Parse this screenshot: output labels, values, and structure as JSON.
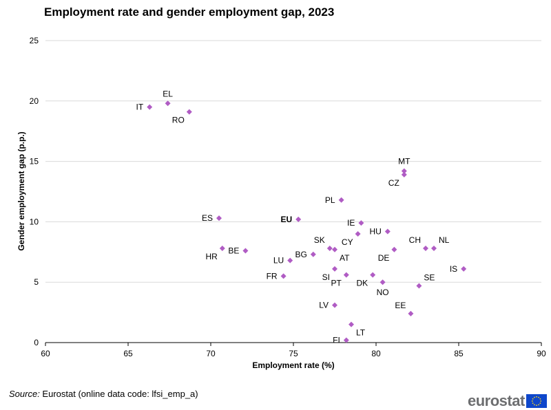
{
  "title": "Employment rate and gender employment gap, 2023",
  "source": {
    "label": "Source:",
    "text": " Eurostat (online data code: lfsi_emp_a)"
  },
  "logo": {
    "text": "eurostat",
    "flag_icon": "eu-flag-icon"
  },
  "colors": {
    "marker": "#b05cc4",
    "grid": "#d9d9d9",
    "axis": "#000000",
    "flag_blue": "#0e47cb",
    "flag_star": "#ffd617"
  },
  "chart_data": {
    "type": "scatter",
    "title": "Employment rate and gender employment gap, 2023",
    "xlabel": "Employment rate (%)",
    "ylabel": "Gender employment gap (p.p.)",
    "xlim": [
      60,
      90
    ],
    "ylim": [
      0,
      25
    ],
    "xticks": [
      60,
      65,
      70,
      75,
      80,
      85,
      90
    ],
    "yticks": [
      0,
      5,
      10,
      15,
      20,
      25
    ],
    "grid": "horizontal",
    "points": [
      {
        "label": "IT",
        "x": 66.3,
        "y": 19.5,
        "pos": "left"
      },
      {
        "label": "EL",
        "x": 67.4,
        "y": 19.8,
        "pos": "top"
      },
      {
        "label": "RO",
        "x": 68.7,
        "y": 19.1,
        "pos": "bottom-left"
      },
      {
        "label": "MT",
        "x": 81.7,
        "y": 14.2,
        "pos": "top"
      },
      {
        "label": "CZ",
        "x": 81.7,
        "y": 13.9,
        "pos": "bottom-left"
      },
      {
        "label": "PL",
        "x": 77.9,
        "y": 11.8,
        "pos": "left"
      },
      {
        "label": "ES",
        "x": 70.5,
        "y": 10.3,
        "pos": "left"
      },
      {
        "label": "EU",
        "x": 75.3,
        "y": 10.2,
        "pos": "left",
        "bold": true
      },
      {
        "label": "IE",
        "x": 79.1,
        "y": 9.9,
        "pos": "left"
      },
      {
        "label": "CY",
        "x": 78.9,
        "y": 9.0,
        "pos": "bottom-left"
      },
      {
        "label": "HU",
        "x": 80.7,
        "y": 9.2,
        "pos": "left"
      },
      {
        "label": "HR",
        "x": 70.7,
        "y": 7.8,
        "pos": "bottom-left"
      },
      {
        "label": "BE",
        "x": 72.1,
        "y": 7.6,
        "pos": "left"
      },
      {
        "label": "SK",
        "x": 77.2,
        "y": 7.8,
        "pos": "top-left"
      },
      {
        "label": "AT",
        "x": 77.5,
        "y": 7.7,
        "pos": "bottom-right"
      },
      {
        "label": "BG",
        "x": 76.2,
        "y": 7.3,
        "pos": "left"
      },
      {
        "label": "LU",
        "x": 74.8,
        "y": 6.8,
        "pos": "left"
      },
      {
        "label": "DE",
        "x": 81.1,
        "y": 7.7,
        "pos": "bottom-left"
      },
      {
        "label": "CH",
        "x": 83.0,
        "y": 7.8,
        "pos": "top-left"
      },
      {
        "label": "NL",
        "x": 83.5,
        "y": 7.8,
        "pos": "top-right"
      },
      {
        "label": "IS",
        "x": 85.3,
        "y": 6.1,
        "pos": "left"
      },
      {
        "label": "FR",
        "x": 74.4,
        "y": 5.5,
        "pos": "left"
      },
      {
        "label": "SI",
        "x": 77.5,
        "y": 6.1,
        "pos": "bottom-left"
      },
      {
        "label": "PT",
        "x": 78.2,
        "y": 5.6,
        "pos": "bottom-left"
      },
      {
        "label": "DK",
        "x": 79.8,
        "y": 5.6,
        "pos": "bottom-left"
      },
      {
        "label": "NO",
        "x": 80.4,
        "y": 5.0,
        "pos": "bottom"
      },
      {
        "label": "SE",
        "x": 82.6,
        "y": 4.7,
        "pos": "top-right"
      },
      {
        "label": "LV",
        "x": 77.5,
        "y": 3.1,
        "pos": "left"
      },
      {
        "label": "EE",
        "x": 82.1,
        "y": 2.4,
        "pos": "top-left"
      },
      {
        "label": "LT",
        "x": 78.5,
        "y": 1.5,
        "pos": "bottom-right"
      },
      {
        "label": "FI",
        "x": 78.2,
        "y": 0.2,
        "pos": "left"
      }
    ]
  }
}
